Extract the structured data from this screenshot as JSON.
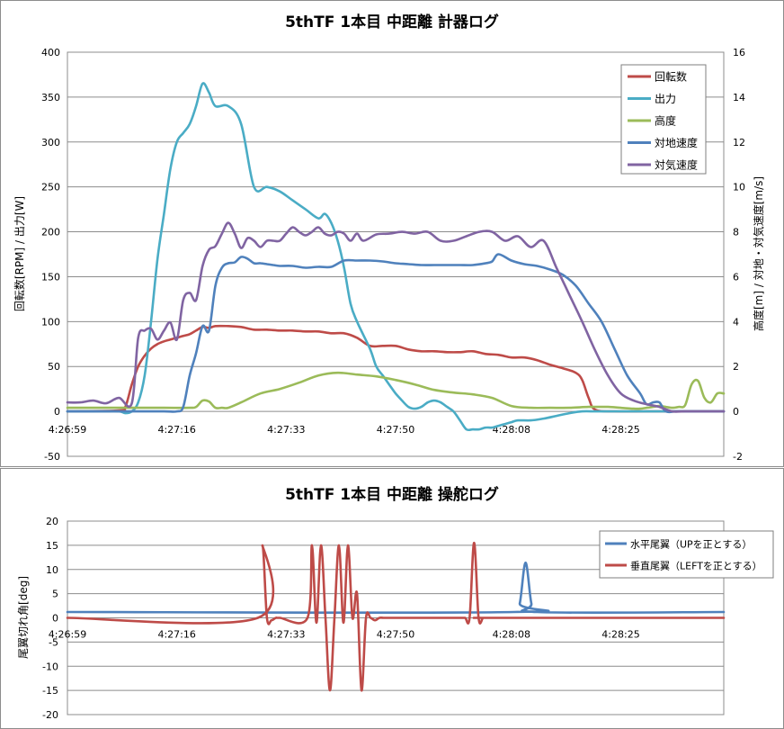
{
  "chart_data": [
    {
      "type": "line",
      "title": "5thTF 1本目 中距離 計器ログ",
      "ylabel_left": "回転数[RPM] / 出力[W]",
      "ylabel_right": "高度[m] / 対地・対気速度[m/s]",
      "xlabel": "",
      "x_range_s": [
        0,
        102
      ],
      "x_ticks": [
        {
          "t": 0,
          "label": "4:26:59"
        },
        {
          "t": 17,
          "label": "4:27:16"
        },
        {
          "t": 34,
          "label": "4:27:33"
        },
        {
          "t": 51,
          "label": "4:27:50"
        },
        {
          "t": 69,
          "label": "4:28:08"
        },
        {
          "t": 86,
          "label": "4:28:25"
        }
      ],
      "ylim_left": [
        -50,
        400
      ],
      "yticks_left": [
        -50,
        0,
        50,
        100,
        150,
        200,
        250,
        300,
        350,
        400
      ],
      "ylim_right": [
        -2,
        16
      ],
      "yticks_right": [
        -2,
        0,
        2,
        4,
        6,
        8,
        10,
        12,
        14,
        16
      ],
      "grid": "horizontal",
      "legend_position": "top-right",
      "series": [
        {
          "name": "回転数",
          "color": "#be4b48",
          "axis": "left",
          "x": [
            0,
            8,
            9,
            10,
            11,
            12,
            13,
            14,
            15,
            16,
            17,
            18,
            19,
            20,
            21,
            22,
            23,
            25,
            27,
            29,
            31,
            33,
            35,
            37,
            39,
            41,
            43,
            45,
            47,
            49,
            51,
            53,
            55,
            57,
            59,
            61,
            63,
            65,
            67,
            69,
            71,
            73,
            75,
            77,
            79,
            80,
            81,
            82,
            85,
            90,
            95,
            102
          ],
          "y": [
            0,
            1,
            5,
            30,
            50,
            62,
            70,
            75,
            78,
            80,
            82,
            84,
            86,
            90,
            94,
            93,
            95,
            95,
            94,
            91,
            91,
            90,
            90,
            89,
            89,
            87,
            87,
            82,
            73,
            73,
            73,
            69,
            67,
            67,
            66,
            66,
            67,
            64,
            63,
            60,
            60,
            57,
            52,
            48,
            43,
            35,
            15,
            2,
            0,
            0,
            0,
            0
          ]
        },
        {
          "name": "出力",
          "color": "#4aacc5",
          "axis": "left",
          "x": [
            0,
            5,
            8,
            9,
            10,
            11,
            12,
            13,
            14,
            15,
            16,
            17,
            18,
            19,
            20,
            21,
            22,
            23,
            25,
            27,
            29,
            31,
            33,
            35,
            37,
            39,
            40,
            41,
            42,
            43,
            44,
            45,
            47,
            48,
            49,
            50,
            51,
            52,
            53,
            54,
            55,
            56,
            57,
            58,
            59,
            60,
            61,
            62,
            63,
            64,
            65,
            66,
            67,
            68,
            69,
            70,
            72,
            74,
            76,
            78,
            80,
            82,
            84,
            86,
            88,
            90,
            95,
            102
          ],
          "y": [
            0,
            0,
            0,
            -2,
            0,
            10,
            40,
            100,
            170,
            220,
            270,
            300,
            310,
            320,
            340,
            365,
            355,
            340,
            340,
            320,
            250,
            250,
            245,
            235,
            225,
            215,
            220,
            210,
            190,
            160,
            120,
            100,
            70,
            50,
            40,
            30,
            20,
            12,
            5,
            3,
            5,
            10,
            12,
            10,
            5,
            0,
            -10,
            -20,
            -20,
            -20,
            -18,
            -18,
            -16,
            -14,
            -12,
            -10,
            -10,
            -8,
            -5,
            -2,
            0,
            0,
            0,
            0,
            0,
            0,
            0,
            0
          ]
        },
        {
          "name": "高度",
          "color": "#9bbb59",
          "axis": "right",
          "x": [
            0,
            5,
            10,
            15,
            19,
            20,
            21,
            22,
            23,
            24,
            25,
            27,
            30,
            33,
            36,
            39,
            42,
            45,
            48,
            51,
            54,
            57,
            60,
            63,
            66,
            69,
            72,
            75,
            78,
            81,
            84,
            86,
            88,
            89,
            90,
            91,
            92,
            93,
            94,
            95,
            96,
            97,
            98,
            99,
            100,
            101,
            102
          ],
          "y": [
            0.16,
            0.16,
            0.16,
            0.16,
            0.16,
            0.2,
            0.48,
            0.44,
            0.16,
            0.16,
            0.16,
            0.4,
            0.8,
            1.0,
            1.28,
            1.6,
            1.72,
            1.64,
            1.56,
            1.4,
            1.2,
            0.96,
            0.84,
            0.76,
            0.6,
            0.24,
            0.16,
            0.16,
            0.16,
            0.2,
            0.2,
            0.16,
            0.12,
            0.12,
            0.16,
            0.2,
            0.24,
            0.2,
            0.16,
            0.2,
            0.28,
            1.2,
            1.36,
            0.6,
            0.4,
            0.8,
            0.8
          ]
        },
        {
          "name": "対地速度",
          "color": "#4f81bc",
          "axis": "right",
          "x": [
            0,
            5,
            10,
            15,
            17,
            18,
            19,
            20,
            21,
            22,
            23,
            24,
            25,
            26,
            27,
            28,
            29,
            30,
            31,
            32,
            33,
            35,
            37,
            39,
            41,
            43,
            45,
            47,
            49,
            51,
            53,
            55,
            57,
            59,
            61,
            63,
            65,
            66,
            67,
            69,
            71,
            73,
            75,
            77,
            79,
            81,
            83,
            85,
            87,
            89,
            90,
            91,
            92,
            93,
            95,
            102
          ],
          "y": [
            0,
            0,
            0,
            0,
            0,
            0.2,
            1.6,
            2.6,
            3.8,
            3.6,
            5.6,
            6.4,
            6.6,
            6.64,
            6.88,
            6.8,
            6.6,
            6.6,
            6.56,
            6.52,
            6.48,
            6.48,
            6.4,
            6.44,
            6.44,
            6.72,
            6.72,
            6.72,
            6.68,
            6.6,
            6.56,
            6.52,
            6.52,
            6.52,
            6.52,
            6.52,
            6.6,
            6.68,
            7.0,
            6.72,
            6.56,
            6.48,
            6.32,
            6.08,
            5.6,
            4.8,
            4.0,
            2.8,
            1.6,
            0.8,
            0.32,
            0.4,
            0.4,
            0,
            0,
            0
          ]
        },
        {
          "name": "対気速度",
          "color": "#8064a2",
          "axis": "right",
          "x": [
            0,
            2,
            4,
            6,
            8,
            10,
            11,
            12,
            13,
            14,
            15,
            16,
            17,
            18,
            19,
            20,
            21,
            22,
            23,
            24,
            25,
            26,
            27,
            28,
            29,
            30,
            31,
            32,
            33,
            34,
            35,
            36,
            37,
            38,
            39,
            40,
            41,
            42,
            43,
            44,
            45,
            46,
            48,
            50,
            52,
            54,
            56,
            58,
            60,
            62,
            64,
            66,
            68,
            70,
            72,
            74,
            76,
            78,
            80,
            82,
            84,
            86,
            88,
            90,
            92,
            94,
            96,
            102
          ],
          "y": [
            0.4,
            0.4,
            0.48,
            0.36,
            0.6,
            0.36,
            3.28,
            3.6,
            3.68,
            3.2,
            3.6,
            3.96,
            3.2,
            4.96,
            5.28,
            4.96,
            6.48,
            7.2,
            7.36,
            7.92,
            8.4,
            7.92,
            7.28,
            7.72,
            7.6,
            7.32,
            7.6,
            7.6,
            7.6,
            7.92,
            8.2,
            8.0,
            7.84,
            8.0,
            8.2,
            7.92,
            7.84,
            8.0,
            7.92,
            7.6,
            7.92,
            7.6,
            7.88,
            7.92,
            8.0,
            7.92,
            8.0,
            7.6,
            7.6,
            7.8,
            8.0,
            8.0,
            7.6,
            7.8,
            7.32,
            7.6,
            6.4,
            5.2,
            4.0,
            2.72,
            1.6,
            0.8,
            0.48,
            0.32,
            0.2,
            0,
            0,
            0
          ]
        }
      ]
    },
    {
      "type": "line",
      "title": "5thTF 1本目 中距離 操舵ログ",
      "ylabel": "尾翼切れ角[deg]",
      "xlabel": "",
      "x_range_s": [
        0,
        102
      ],
      "x_ticks": [
        {
          "t": 0,
          "label": "4:26:59"
        },
        {
          "t": 17,
          "label": "4:27:16"
        },
        {
          "t": 34,
          "label": "4:27:33"
        },
        {
          "t": 51,
          "label": "4:27:50"
        },
        {
          "t": 69,
          "label": "4:28:08"
        },
        {
          "t": 86,
          "label": "4:28:25"
        }
      ],
      "ylim": [
        -20,
        20
      ],
      "yticks": [
        -20,
        -15,
        -10,
        -5,
        0,
        5,
        10,
        15,
        20
      ],
      "grid": "horizontal",
      "legend_position": "top-right",
      "series": [
        {
          "name": "水平尾翼（UPを正とする）",
          "color": "#4f81bc",
          "x": [
            0,
            69.4,
            70.3,
            71.2,
            72.1,
            73,
            102
          ],
          "y": [
            1.2,
            1.2,
            3,
            11.4,
            3,
            1.2,
            1.2
          ]
        },
        {
          "name": "垂直尾翼（LEFTを正とする）",
          "color": "#be4b48",
          "x": [
            0,
            29.6,
            30.3,
            31.0,
            31.7,
            32.4,
            33,
            37.3,
            38.0,
            38.7,
            39.4,
            40.1,
            40.8,
            41.5,
            42.2,
            42.9,
            43.6,
            44.3,
            45.0,
            45.7,
            46.4,
            47.1,
            47.8,
            48.5,
            49.2,
            49.9,
            50.6,
            51.3,
            52.0,
            52.7,
            53.4,
            54.1,
            54.8,
            55.5,
            56.2,
            56.9,
            57.6,
            58.3,
            59.0,
            59.7,
            60.4,
            61.1,
            61.8,
            62.5,
            63.2,
            63.9,
            64.6,
            65.3,
            66,
            102
          ],
          "y": [
            0,
            0,
            15,
            0,
            -0.5,
            0,
            0,
            0,
            15,
            -1,
            15,
            0,
            -15,
            0,
            15,
            -1,
            15,
            0,
            5,
            -15,
            0,
            0,
            -0.5,
            0,
            0,
            0,
            0,
            0,
            0,
            0,
            0,
            0,
            0,
            0,
            0,
            0,
            0,
            0,
            0,
            0,
            0,
            0,
            0,
            0,
            15.5,
            0,
            0,
            0,
            0,
            0
          ]
        }
      ]
    }
  ]
}
